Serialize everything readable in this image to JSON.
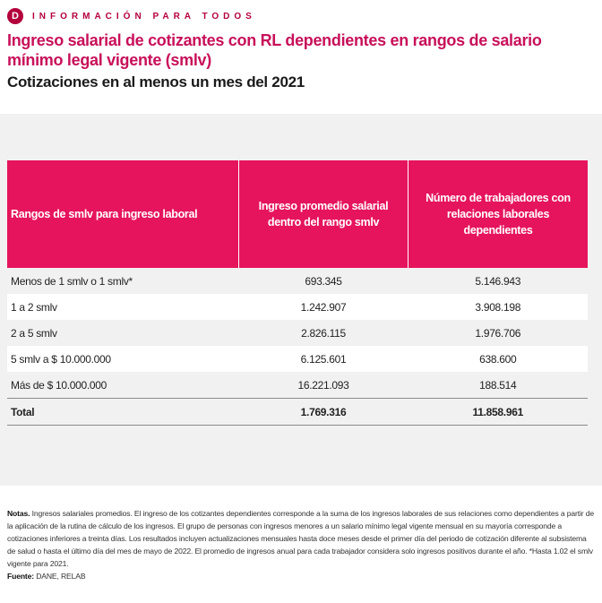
{
  "brand": {
    "logo_letter": "D",
    "tagline": "INFORMACIÓN PARA TODOS",
    "color": "#b3003c"
  },
  "title": "Ingreso salarial de cotizantes con RL dependientes en rangos de salario mínimo legal vigente (smlv)",
  "subtitle": "Cotizaciones en al menos un mes del 2021",
  "table": {
    "header_color": "#e6145c",
    "headers": [
      "Rangos de smlv para ingreso laboral",
      "Ingreso promedio salarial dentro del rango smlv",
      "Número de trabajadores con relaciones laborales dependientes"
    ],
    "rows": [
      [
        "Menos de 1 smlv o 1 smlv*",
        "693.345",
        "5.146.943"
      ],
      [
        "1 a 2 smlv",
        "1.242.907",
        "3.908.198"
      ],
      [
        "2 a 5 smlv",
        "2.826.115",
        "1.976.706"
      ],
      [
        "5 smlv a $ 10.000.000",
        "6.125.601",
        "638.600"
      ],
      [
        "Más de $ 10.000.000",
        "16.221.093",
        "188.514"
      ]
    ],
    "total": [
      "Total",
      "1.769.316",
      "11.858.961"
    ]
  },
  "notes": {
    "label": "Notas.",
    "text": " Ingresos salariales promedios. El ingreso de los cotizantes dependientes corresponde a la suma de los ingresos laborales de sus relaciones como dependientes a partir de la aplicación de la rutina de cálculo de los ingresos. El grupo de personas con ingresos menores a un salario mínimo legal vigente mensual en su mayoría corresponde a cotizaciones inferiores a treinta días. Los resultados incluyen actualizaciones mensuales hasta doce meses desde el primer día del periodo de cotización diferente al subsistema de salud o hasta el último día del mes de mayo de 2022. El promedio de ingresos anual para cada trabajador considera solo ingresos positivos durante el año. *Hasta 1.02 el smlv vigente para 2021.",
    "source_label": "Fuente:",
    "source_text": " DANE, RELAB"
  }
}
